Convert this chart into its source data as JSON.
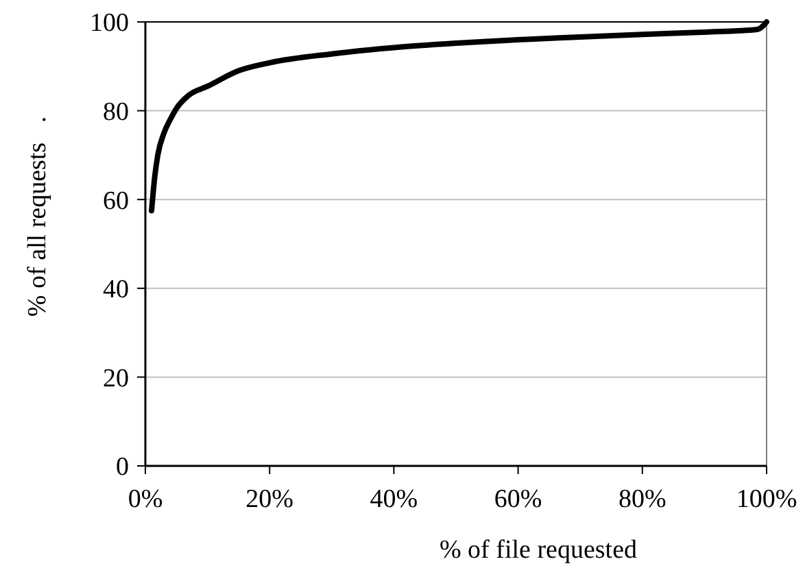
{
  "chart_data": {
    "type": "line",
    "xlabel": "% of file requested",
    "ylabel": "% of all requests   .",
    "x": [
      1,
      1.5,
      2,
      3,
      4,
      5,
      7,
      10,
      15,
      20,
      30,
      40,
      50,
      60,
      70,
      80,
      90,
      98.5,
      99.5,
      100
    ],
    "series": [
      {
        "color": "#000000",
        "values": [
          57.5,
          65,
          70,
          75,
          78,
          80.5,
          83.5,
          85.5,
          89,
          90.8,
          92.8,
          94.2,
          95.2,
          96,
          96.6,
          97.2,
          97.7,
          98.3,
          99.2,
          100
        ]
      }
    ],
    "xlim": [
      0,
      100
    ],
    "ylim": [
      0,
      100
    ],
    "xticks": [
      {
        "value": 0,
        "label": "0%"
      },
      {
        "value": 20,
        "label": "20%"
      },
      {
        "value": 40,
        "label": "40%"
      },
      {
        "value": 60,
        "label": "60%"
      },
      {
        "value": 80,
        "label": "80%"
      },
      {
        "value": 100,
        "label": "100%"
      }
    ],
    "yticks": [
      0,
      20,
      40,
      60,
      80,
      100
    ],
    "grid": "y",
    "marker": "none",
    "line_style": "solid"
  }
}
